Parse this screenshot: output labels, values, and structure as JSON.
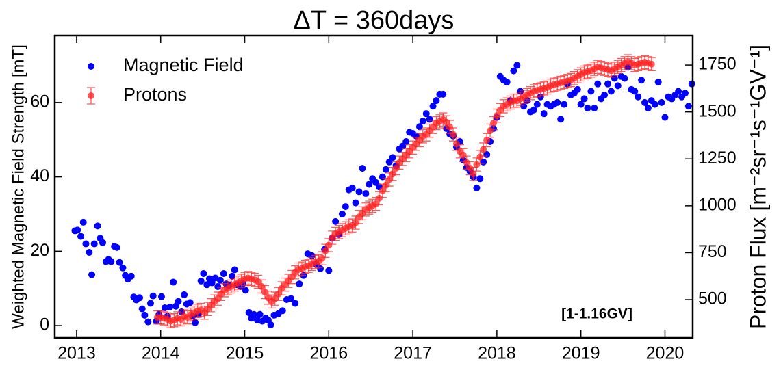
{
  "chart_data": {
    "type": "scatter",
    "title": "ΔT =  360days",
    "annotation": "[1-1.16GV]",
    "ylabel": "Weighted Magnetic Field Strength [mT]",
    "y2label": "Proton Flux [m⁻²sr⁻¹s⁻¹GV⁻¹]",
    "legend": "upper left",
    "xlim": [
      2012.74,
      2020.33
    ],
    "xticks": [
      2013,
      2014,
      2015,
      2016,
      2017,
      2018,
      2019,
      2020
    ],
    "ylim": [
      -3.3,
      78
    ],
    "yticks": [
      0,
      20,
      40,
      60
    ],
    "y2lim": [
      296,
      1907
    ],
    "y2ticks": [
      500,
      750,
      1000,
      1250,
      1500,
      1750
    ],
    "series": [
      {
        "name": "Magnetic Field",
        "color": "#0000ff",
        "axis": "y",
        "x": [
          2012.98,
          2013.01,
          2013.05,
          2013.08,
          2013.11,
          2013.15,
          2013.18,
          2013.21,
          2013.25,
          2013.28,
          2013.31,
          2013.35,
          2013.38,
          2013.41,
          2013.45,
          2013.48,
          2013.51,
          2013.55,
          2013.58,
          2013.61,
          2013.65,
          2013.68,
          2013.71,
          2013.75,
          2013.78,
          2013.81,
          2013.85,
          2013.88,
          2013.91,
          2013.95,
          2013.98,
          2014.01,
          2014.05,
          2014.08,
          2014.11,
          2014.15,
          2014.18,
          2014.21,
          2014.25,
          2014.28,
          2014.31,
          2014.35,
          2014.38,
          2014.41,
          2014.45,
          2014.48,
          2014.51,
          2014.55,
          2014.58,
          2014.61,
          2014.65,
          2014.68,
          2014.71,
          2014.75,
          2014.78,
          2014.81,
          2014.85,
          2014.88,
          2014.91,
          2014.95,
          2014.98,
          2015.01,
          2015.05,
          2015.08,
          2015.11,
          2015.15,
          2015.18,
          2015.21,
          2015.25,
          2015.28,
          2015.31,
          2015.35,
          2015.4,
          2015.45,
          2015.5,
          2015.55,
          2015.6,
          2015.65,
          2015.7,
          2015.75,
          2015.8,
          2015.85,
          2015.9,
          2015.95,
          2016,
          2016.04,
          2016.08,
          2016.12,
          2016.16,
          2016.2,
          2016.24,
          2016.28,
          2016.32,
          2016.36,
          2016.4,
          2016.44,
          2016.48,
          2016.52,
          2016.56,
          2016.6,
          2016.64,
          2016.68,
          2016.72,
          2016.76,
          2016.8,
          2016.84,
          2016.88,
          2016.92,
          2016.96,
          2017,
          2017.04,
          2017.08,
          2017.12,
          2017.16,
          2017.2,
          2017.24,
          2017.28,
          2017.32,
          2017.36,
          2017.4,
          2017.44,
          2017.48,
          2017.52,
          2017.56,
          2017.6,
          2017.64,
          2017.68,
          2017.72,
          2017.76,
          2017.8,
          2017.84,
          2017.88,
          2017.92,
          2017.96,
          2018,
          2018.04,
          2018.08,
          2018.12,
          2018.16,
          2018.2,
          2018.24,
          2018.28,
          2018.32,
          2018.36,
          2018.4,
          2018.44,
          2018.48,
          2018.52,
          2018.56,
          2018.6,
          2018.64,
          2018.68,
          2018.72,
          2018.76,
          2018.8,
          2018.84,
          2018.88,
          2018.92,
          2018.96,
          2019,
          2019.04,
          2019.08,
          2019.12,
          2019.16,
          2019.2,
          2019.24,
          2019.28,
          2019.32,
          2019.36,
          2019.4,
          2019.44,
          2019.48,
          2019.52,
          2019.56,
          2019.6,
          2019.64,
          2019.68,
          2019.72,
          2019.76,
          2019.8,
          2019.84,
          2019.88,
          2019.92,
          2019.96,
          2020,
          2020.04,
          2020.08,
          2020.12,
          2020.16,
          2020.2,
          2020.24,
          2020.28,
          2020.32
        ],
        "values": [
          25.5,
          25.7,
          24,
          27.8,
          22,
          19.7,
          13.7,
          22,
          26.8,
          23.5,
          22.3,
          17.2,
          17.8,
          17.2,
          21.3,
          21,
          17,
          15.5,
          13.5,
          12.5,
          13.3,
          7.7,
          6.9,
          7.5,
          4.5,
          2.8,
          1,
          6,
          8,
          1.2,
          3,
          7.8,
          4.8,
          2.5,
          5,
          11.7,
          5.2,
          6.5,
          3.7,
          8.3,
          5.8,
          6.2,
          2.5,
          0.8,
          3,
          12,
          14,
          11,
          12.6,
          11.5,
          12.8,
          10.5,
          12.2,
          14,
          11.2,
          10.8,
          13.3,
          15,
          11,
          10.5,
          11.3,
          9.5,
          3.5,
          2,
          3,
          1.5,
          3,
          1.2,
          2,
          1.5,
          0.2,
          2.8,
          3.2,
          4,
          7,
          7.3,
          6,
          11.2,
          13.5,
          19.3,
          18.8,
          16.5,
          15.3,
          20.5,
          14.8,
          23.5,
          28,
          24.5,
          30,
          32,
          36.5,
          37,
          33,
          36,
          42.3,
          35.5,
          38,
          39.5,
          38.5,
          37.3,
          40,
          42,
          44,
          45.2,
          43,
          47.5,
          48.3,
          49.5,
          52,
          51.7,
          51,
          53.5,
          55,
          57,
          55.5,
          59,
          60.5,
          62.2,
          62.2,
          53,
          51.5,
          51,
          48,
          49.5,
          44.5,
          42.5,
          41.5,
          40,
          37,
          39.5,
          44,
          46,
          49.5,
          53,
          56,
          67,
          66,
          65.5,
          60.5,
          68.5,
          70,
          63,
          59,
          60.5,
          57.5,
          58,
          59.5,
          61.5,
          57,
          59.5,
          59,
          59.5,
          60,
          55.5,
          59.5,
          65,
          62,
          62.5,
          63.5,
          59.5,
          61,
          58.5,
          63,
          58.5,
          65,
          61,
          62,
          65,
          63,
          66.5,
          64.5,
          67,
          66.5,
          69.5,
          63.5,
          63,
          61.5,
          66,
          60,
          58.5,
          60.5,
          59.5,
          65.5,
          60,
          56,
          61.5,
          61,
          62,
          63,
          61.5,
          62.5,
          59,
          65
        ]
      },
      {
        "name": "Protons",
        "color": "#ff2020",
        "axis": "y2",
        "yerr": 35,
        "x": [
          2013.96,
          2014,
          2014.04,
          2014.08,
          2014.12,
          2014.16,
          2014.2,
          2014.24,
          2014.28,
          2014.32,
          2014.36,
          2014.4,
          2014.44,
          2014.48,
          2014.52,
          2014.56,
          2014.6,
          2014.64,
          2014.68,
          2014.72,
          2014.76,
          2014.8,
          2014.84,
          2014.88,
          2014.92,
          2014.96,
          2015,
          2015.04,
          2015.08,
          2015.12,
          2015.16,
          2015.2,
          2015.24,
          2015.28,
          2015.32,
          2015.36,
          2015.4,
          2015.44,
          2015.48,
          2015.52,
          2015.56,
          2015.6,
          2015.64,
          2015.68,
          2015.72,
          2015.76,
          2015.8,
          2015.84,
          2015.88,
          2015.92,
          2015.96,
          2016,
          2016.04,
          2016.08,
          2016.12,
          2016.16,
          2016.2,
          2016.24,
          2016.28,
          2016.32,
          2016.36,
          2016.4,
          2016.44,
          2016.48,
          2016.52,
          2016.56,
          2016.6,
          2016.64,
          2016.68,
          2016.72,
          2016.76,
          2016.8,
          2016.84,
          2016.88,
          2016.92,
          2016.96,
          2017,
          2017.04,
          2017.08,
          2017.12,
          2017.16,
          2017.2,
          2017.24,
          2017.28,
          2017.32,
          2017.36,
          2017.4,
          2017.44,
          2017.48,
          2017.52,
          2017.56,
          2017.6,
          2017.64,
          2017.68,
          2017.72,
          2017.76,
          2017.8,
          2017.84,
          2017.88,
          2017.92,
          2017.96,
          2018,
          2018.04,
          2018.08,
          2018.12,
          2018.16,
          2018.2,
          2018.24,
          2018.28,
          2018.32,
          2018.36,
          2018.4,
          2018.44,
          2018.48,
          2018.52,
          2018.56,
          2018.6,
          2018.64,
          2018.68,
          2018.72,
          2018.76,
          2018.8,
          2018.84,
          2018.88,
          2018.92,
          2018.96,
          2019,
          2019.04,
          2019.08,
          2019.12,
          2019.16,
          2019.2,
          2019.24,
          2019.28,
          2019.32,
          2019.36,
          2019.4,
          2019.44,
          2019.48,
          2019.52,
          2019.56,
          2019.6,
          2019.64,
          2019.68,
          2019.72,
          2019.76,
          2019.8,
          2019.84
        ],
        "values": [
          405,
          405,
          400,
          395,
          385,
          390,
          400,
          395,
          410,
          405,
          420,
          430,
          440,
          445,
          430,
          450,
          470,
          490,
          505,
          530,
          550,
          560,
          570,
          580,
          590,
          600,
          610,
          615,
          610,
          605,
          595,
          570,
          540,
          510,
          490,
          505,
          530,
          560,
          580,
          600,
          620,
          645,
          660,
          665,
          675,
          680,
          690,
          700,
          705,
          720,
          760,
          790,
          830,
          850,
          860,
          870,
          880,
          890,
          895,
          910,
          940,
          960,
          980,
          990,
          1000,
          1010,
          1040,
          1080,
          1110,
          1140,
          1170,
          1200,
          1230,
          1250,
          1270,
          1290,
          1310,
          1330,
          1350,
          1370,
          1380,
          1400,
          1420,
          1440,
          1450,
          1460,
          1445,
          1420,
          1380,
          1330,
          1290,
          1270,
          1230,
          1200,
          1170,
          1220,
          1260,
          1300,
          1350,
          1400,
          1440,
          1480,
          1510,
          1530,
          1540,
          1550,
          1560,
          1560,
          1570,
          1580,
          1590,
          1600,
          1610,
          1615,
          1620,
          1625,
          1630,
          1640,
          1645,
          1650,
          1655,
          1660,
          1665,
          1670,
          1680,
          1690,
          1700,
          1710,
          1715,
          1720,
          1730,
          1740,
          1735,
          1730,
          1725,
          1720,
          1730,
          1740,
          1750,
          1760,
          1770,
          1760,
          1750,
          1755,
          1760,
          1765,
          1760,
          1755
        ]
      }
    ]
  }
}
